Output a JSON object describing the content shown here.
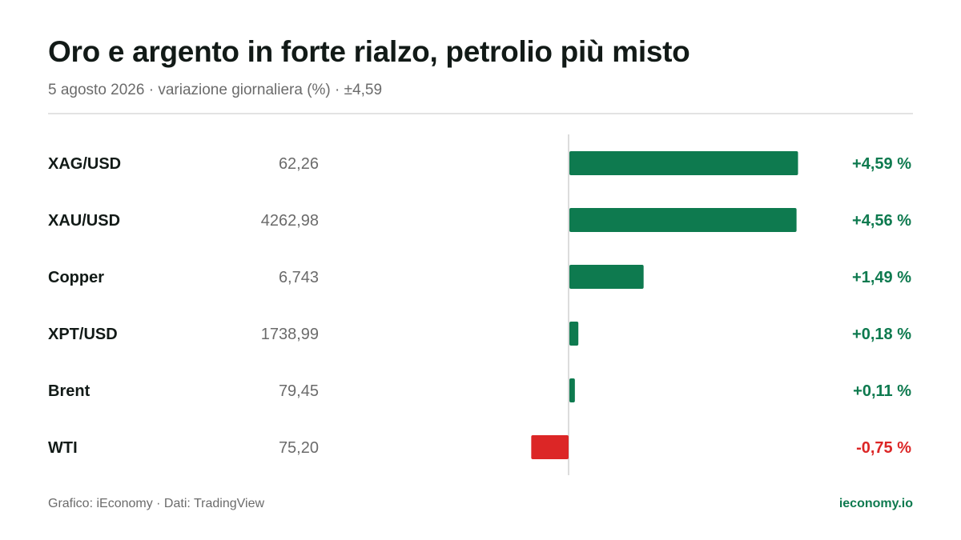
{
  "header": {
    "title": "Oro e argento in forte rialzo, petrolio più misto",
    "subtitle": "5 agosto 2026 · variazione giornaliera (%) · ±4,59"
  },
  "footer": {
    "source": "Grafico: iEconomy · Dati: TradingView",
    "brand": "ieconomy.io"
  },
  "colors": {
    "positive": "#0e7a4f",
    "negative": "#dc2626",
    "axis": "#d0d0d0"
  },
  "chart_data": {
    "type": "bar",
    "orientation": "horizontal",
    "categories": [
      "XAG/USD",
      "XAU/USD",
      "Copper",
      "XPT/USD",
      "Brent",
      "WTI"
    ],
    "prices": [
      "62,26",
      "4262,98",
      "6,743",
      "1738,99",
      "79,45",
      "75,20"
    ],
    "values": [
      4.59,
      4.56,
      1.49,
      0.18,
      0.11,
      -0.75
    ],
    "value_labels": [
      "+4,59 %",
      "+4,56 %",
      "+1,49 %",
      "+0,18 %",
      "+0,11 %",
      "-0,75 %"
    ],
    "xlim": [
      -4.59,
      4.59
    ]
  }
}
